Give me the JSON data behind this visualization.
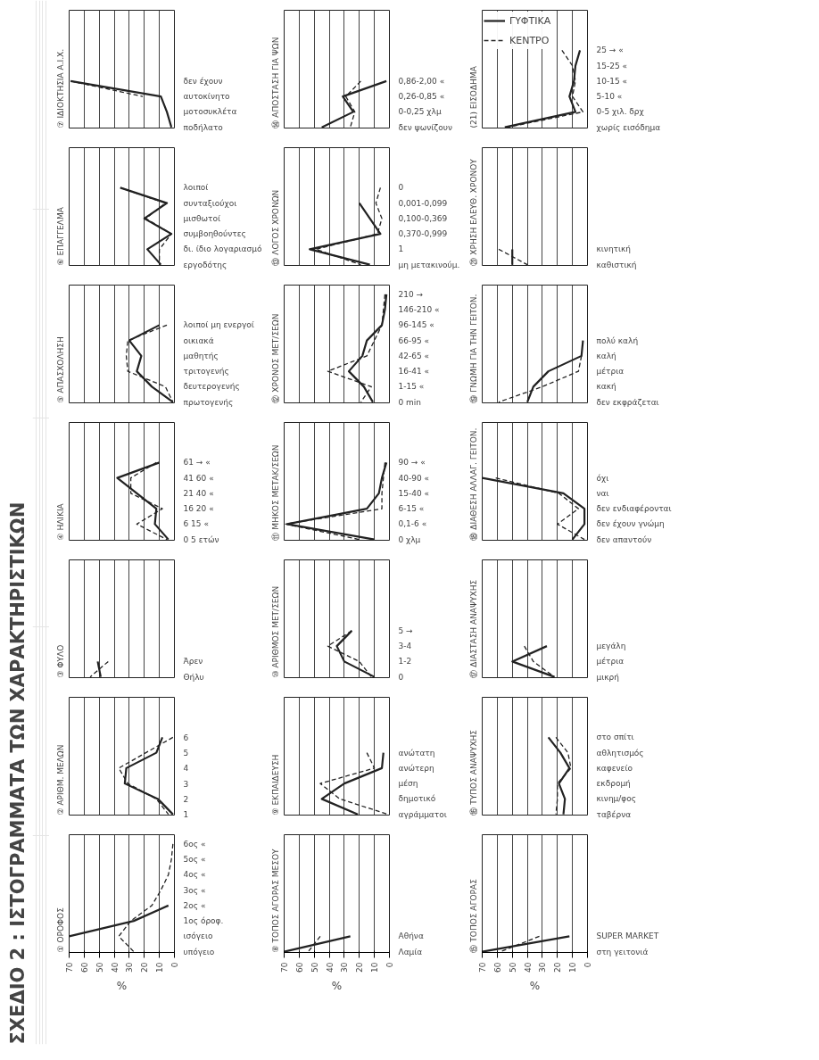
{
  "chart_data": [
    {
      "type": "other",
      "title": "ΣΧΕΔΙΟ 2 : ΙΣΤΟΓΡΑΜΜΑΤΑ ΤΩΝ ΧΑΡΑΚΤΗΡΙΣΤΙΚΩΝ"
    },
    {
      "type": "line",
      "orientation": "horizontal",
      "title": "① ΟΡΟΦΟΣ",
      "xlabel": "%",
      "xlim": [
        70,
        0
      ],
      "xticks": [
        0,
        10,
        20,
        30,
        40,
        50,
        60,
        70
      ],
      "grid": "x",
      "categories": [
        "6ος «",
        "5ος «",
        "4ος «",
        "3ος «",
        "2ος «",
        "1ος όροφ.",
        "ισόγειο",
        "υπόγειο"
      ],
      "series": [
        {
          "color": "#222222",
          "line_style": "solid",
          "values": [
            null,
            null,
            null,
            null,
            4,
            27,
            70,
            null
          ]
        },
        {
          "color": "#222222",
          "line_style": "dashed",
          "values": [
            1,
            2,
            4,
            9,
            15,
            29,
            37,
            27
          ]
        }
      ]
    },
    {
      "type": "line",
      "orientation": "horizontal",
      "title": "② ΑΡΙΘΜ. ΜΕΛΩΝ",
      "tick_labels": "y",
      "xlim": [
        70,
        0
      ],
      "xticks": [
        0,
        10,
        20,
        30,
        40,
        50,
        60,
        70
      ],
      "grid": "x",
      "categories": [
        "6",
        "5",
        "4",
        "3",
        "2",
        "1"
      ],
      "series": [
        {
          "color": "#222222",
          "line_style": "solid",
          "values": [
            8,
            12,
            32,
            33,
            11,
            1
          ]
        },
        {
          "color": "#222222",
          "line_style": "dashed",
          "values": [
            1,
            19,
            37,
            31,
            12,
            4
          ]
        }
      ]
    },
    {
      "type": "line",
      "orientation": "horizontal",
      "title": "③ ΦΥΛΟ",
      "tick_labels": "y",
      "xlim": [
        70,
        0
      ],
      "xticks": [
        0,
        10,
        20,
        30,
        40,
        50,
        60,
        70
      ],
      "grid": "x",
      "categories": [
        "Άρεν",
        "Θήλυ"
      ],
      "series": [
        {
          "color": "#222222",
          "line_style": "solid",
          "values": [
            51,
            49
          ]
        },
        {
          "color": "#222222",
          "line_style": "dashed",
          "values": [
            44,
            56
          ]
        }
      ]
    },
    {
      "type": "line",
      "orientation": "horizontal",
      "title": "④ ΗΛΙΚΙΑ",
      "tick_labels": "y",
      "xlim": [
        70,
        0
      ],
      "xticks": [
        0,
        10,
        20,
        30,
        40,
        50,
        60,
        70
      ],
      "grid": "x",
      "categories": [
        "61 → «",
        "41 60 «",
        "21 40 «",
        "16 20 «",
        "6 15 «",
        "0 5 ετών"
      ],
      "series": [
        {
          "color": "#222222",
          "line_style": "solid",
          "values": [
            10,
            38,
            25,
            12,
            13,
            4
          ]
        },
        {
          "color": "#222222",
          "line_style": "dashed",
          "values": [
            12,
            29,
            29,
            8,
            25,
            5
          ]
        }
      ]
    },
    {
      "type": "line",
      "orientation": "horizontal",
      "title": "⑤ ΑΠΑΣΧΟΛΗΣΗ",
      "tick_labels": "y",
      "xlim": [
        70,
        0
      ],
      "xticks": [
        0,
        10,
        20,
        30,
        40,
        50,
        60,
        70
      ],
      "grid": "x",
      "categories": [
        "λοιποί μη ενεργοί",
        "οικιακά",
        "μαθητής",
        "τριτογενής",
        "δευτερογενής",
        "πρωτογενής"
      ],
      "series": [
        {
          "color": "#222222",
          "line_style": "solid",
          "values": [
            10,
            30,
            22,
            25,
            15,
            1
          ]
        },
        {
          "color": "#222222",
          "line_style": "dashed",
          "values": [
            5,
            31,
            32,
            31,
            6,
            1
          ]
        }
      ]
    },
    {
      "type": "line",
      "orientation": "horizontal",
      "title": "⑥ ΕΠΑΓΓΕΛΜΑ",
      "tick_labels": "y",
      "xlim": [
        70,
        0
      ],
      "xticks": [
        0,
        10,
        20,
        30,
        40,
        50,
        60,
        70
      ],
      "grid": "x",
      "categories": [
        "λοιποί",
        "συνταξιούχοι",
        "μισθωτοί",
        "συμβοηθούντες",
        "δι. ίδιο λογαριασμό",
        "εργοδότης"
      ],
      "series": [
        {
          "color": "#222222",
          "line_style": "solid",
          "values": [
            36,
            5,
            20,
            2,
            18,
            9
          ]
        },
        {
          "color": "#222222",
          "line_style": "dashed",
          "values": [
            36,
            6,
            19,
            2,
            10,
            10
          ]
        }
      ]
    },
    {
      "type": "line",
      "orientation": "horizontal",
      "title": "⑦ ΙΔΙΟΚΤΗΣΙΑ Α.Ι.Χ.",
      "tick_labels": "y",
      "xlim": [
        70,
        0
      ],
      "xticks": [
        0,
        10,
        20,
        30,
        40,
        50,
        60,
        70
      ],
      "grid": "x",
      "categories": [
        "δεν έχουν",
        "αυτοκίνητο",
        "μοτοσυκλέτα",
        "ποδήλατο"
      ],
      "series": [
        {
          "color": "#222222",
          "line_style": "solid",
          "values": [
            69,
            9,
            5,
            2
          ]
        },
        {
          "color": "#222222",
          "line_style": "dashed",
          "values": [
            69,
            21,
            null,
            null
          ]
        }
      ]
    },
    {
      "type": "line",
      "orientation": "horizontal",
      "title": "⑧ ΤΟΠΟΣ ΑΓΟΡΑΣ ΜΕΣΟΥ",
      "xlabel": "%",
      "xlim": [
        70,
        0
      ],
      "xticks": [
        0,
        10,
        20,
        30,
        40,
        50,
        60,
        70
      ],
      "grid": "x",
      "categories": [
        "Αθήνα",
        "Λαμία"
      ],
      "series": [
        {
          "color": "#222222",
          "line_style": "solid",
          "values": [
            26,
            70
          ]
        },
        {
          "color": "#222222",
          "line_style": "dashed",
          "values": [
            46,
            54
          ]
        }
      ]
    },
    {
      "type": "line",
      "orientation": "horizontal",
      "title": "⑨ ΕΚΠΑΙΔΕΥΣΗ",
      "tick_labels": "y",
      "xlim": [
        70,
        0
      ],
      "xticks": [
        0,
        10,
        20,
        30,
        40,
        50,
        60,
        70
      ],
      "grid": "x",
      "categories": [
        "ανώτατη",
        "ανώτερη",
        "μέση",
        "δημοτικό",
        "αγράμματοι"
      ],
      "series": [
        {
          "color": "#222222",
          "line_style": "solid",
          "values": [
            4,
            5,
            30,
            45,
            21
          ]
        },
        {
          "color": "#222222",
          "line_style": "dashed",
          "values": [
            15,
            10,
            46,
            33,
            1
          ]
        }
      ]
    },
    {
      "type": "line",
      "orientation": "horizontal",
      "title": "⑩ ΑΡΙΘΜΟΣ ΜΕΤ/ΣΕΩΝ",
      "tick_labels": "y",
      "xlim": [
        70,
        0
      ],
      "xticks": [
        0,
        10,
        20,
        30,
        40,
        50,
        60,
        70
      ],
      "grid": "x",
      "categories": [
        "5 →",
        "3-4",
        "1-2",
        "0"
      ],
      "series": [
        {
          "color": "#222222",
          "line_style": "solid",
          "values": [
            25,
            35,
            30,
            10
          ]
        },
        {
          "color": "#222222",
          "line_style": "dashed",
          "values": [
            25,
            41,
            20,
            12
          ]
        }
      ]
    },
    {
      "type": "line",
      "orientation": "horizontal",
      "title": "⑪ ΜΗΚΟΣ ΜΕΤΑΚ/ΣΕΩΝ",
      "tick_labels": "y",
      "xlim": [
        70,
        0
      ],
      "xticks": [
        0,
        10,
        20,
        30,
        40,
        50,
        60,
        70
      ],
      "grid": "x",
      "categories": [
        "90 → «",
        "40-90 «",
        "15-40 «",
        "6-15 «",
        "0,1-6 «",
        "0 χλμ"
      ],
      "series": [
        {
          "color": "#222222",
          "line_style": "solid",
          "values": [
            2,
            5,
            7,
            15,
            68,
            10
          ]
        },
        {
          "color": "#222222",
          "line_style": "dashed",
          "values": [
            3,
            4,
            5,
            5,
            69,
            20
          ]
        }
      ]
    },
    {
      "type": "line",
      "orientation": "horizontal",
      "title": "⑫ ΧΡΟΝΟΣ ΜΕΤ/ΣΕΩΝ",
      "tick_labels": "y",
      "xlim": [
        70,
        0
      ],
      "xticks": [
        0,
        10,
        20,
        30,
        40,
        50,
        60,
        70
      ],
      "grid": "x",
      "categories": [
        "210 →",
        "146-210 «",
        "96-145 «",
        "66-95 «",
        "42-65 «",
        "16-41 «",
        "1-15 «",
        "0 min"
      ],
      "series": [
        {
          "color": "#222222",
          "line_style": "solid",
          "values": [
            2,
            3,
            5,
            15,
            18,
            27,
            17,
            11
          ]
        },
        {
          "color": "#222222",
          "line_style": "dashed",
          "values": [
            3,
            4,
            5,
            10,
            15,
            41,
            12,
            19
          ]
        }
      ]
    },
    {
      "type": "line",
      "orientation": "horizontal",
      "title": "⑬ ΛΟΓΟΣ ΧΡΟΝΩΝ",
      "tick_labels": "y",
      "xlim": [
        70,
        0
      ],
      "xticks": [
        0,
        10,
        20,
        30,
        40,
        50,
        60,
        70
      ],
      "grid": "x",
      "categories": [
        "0",
        "0,001-0,099",
        "0,100-0,369",
        "0,370-0,999",
        "1",
        "μη μετακινούμ."
      ],
      "series": [
        {
          "color": "#222222",
          "line_style": "solid",
          "values": [
            null,
            20,
            13,
            6,
            53,
            13
          ]
        },
        {
          "color": "#222222",
          "line_style": "dashed",
          "values": [
            6,
            9,
            5,
            8,
            49,
            19
          ]
        }
      ]
    },
    {
      "type": "line",
      "orientation": "horizontal",
      "title": "⑭ ΑΠΟΣΤΑΣΗ ΓΙΑ ΨΩΝ",
      "tick_labels": "y",
      "xlim": [
        70,
        0
      ],
      "xticks": [
        0,
        10,
        20,
        30,
        40,
        50,
        60,
        70
      ],
      "grid": "x",
      "categories": [
        "0,86-2,00 «",
        "0,26-0,85 «",
        "0-0,25 χλμ",
        "δεν ψωνίζουν"
      ],
      "series": [
        {
          "color": "#222222",
          "line_style": "solid",
          "values": [
            2,
            31,
            24,
            45
          ]
        },
        {
          "color": "#222222",
          "line_style": "dashed",
          "values": [
            19,
            29,
            23,
            26
          ]
        }
      ]
    },
    {
      "type": "line",
      "orientation": "horizontal",
      "title": "⑮ ΤΟΠΟΣ ΑΓΟΡΑΣ",
      "xlabel": "%",
      "xlim": [
        70,
        0
      ],
      "xticks": [
        0,
        10,
        20,
        30,
        40,
        50,
        60,
        70
      ],
      "grid": "x",
      "categories": [
        "SUPER MARKET",
        "στη γειτονιά"
      ],
      "series": [
        {
          "color": "#222222",
          "line_style": "solid",
          "values": [
            12,
            70
          ]
        },
        {
          "color": "#222222",
          "line_style": "dashed",
          "values": [
            32,
            58
          ]
        }
      ]
    },
    {
      "type": "line",
      "orientation": "horizontal",
      "title": "⑯ ΤΥΠΟΣ ΑΝΑΨΥΧΗΣ",
      "tick_labels": "y",
      "xlim": [
        70,
        0
      ],
      "xticks": [
        0,
        10,
        20,
        30,
        40,
        50,
        60,
        70
      ],
      "grid": "x",
      "categories": [
        "στο σπίτι",
        "αθλητισμός",
        "καφενείο",
        "εκδρομή",
        "κινημ/φος",
        "ταβέρνα"
      ],
      "series": [
        {
          "color": "#222222",
          "line_style": "solid",
          "values": [
            26,
            18,
            12,
            19,
            15,
            16
          ]
        },
        {
          "color": "#222222",
          "line_style": "dashed",
          "values": [
            21,
            13,
            11,
            20,
            20,
            21
          ]
        }
      ]
    },
    {
      "type": "line",
      "orientation": "horizontal",
      "title": "⑰ ΔΙΑΣΤΑΣΗ ΑΝΑΨΥΧΗΣ",
      "tick_labels": "y",
      "xlim": [
        70,
        0
      ],
      "xticks": [
        0,
        10,
        20,
        30,
        40,
        50,
        60,
        70
      ],
      "grid": "x",
      "categories": [
        "μεγάλη",
        "μέτρια",
        "μικρή"
      ],
      "series": [
        {
          "color": "#222222",
          "line_style": "solid",
          "values": [
            27,
            50,
            22
          ]
        },
        {
          "color": "#222222",
          "line_style": "dashed",
          "values": [
            42,
            36,
            22
          ]
        }
      ]
    },
    {
      "type": "line",
      "orientation": "horizontal",
      "title": "⑱ ΔΙΑΘΕΣΗ ΑΛΛΑΓ. ΓΕΙΤΟΝ.",
      "tick_labels": "y",
      "xlim": [
        70,
        0
      ],
      "xticks": [
        0,
        10,
        20,
        30,
        40,
        50,
        60,
        70
      ],
      "grid": "x",
      "categories": [
        "όχι",
        "ναι",
        "δεν ενδιαφέρονται",
        "δεν έχουν γνώμη",
        "δεν απαντούν"
      ],
      "series": [
        {
          "color": "#222222",
          "line_style": "solid",
          "values": [
            70,
            16,
            2,
            2,
            10
          ]
        },
        {
          "color": "#222222",
          "line_style": "dashed",
          "values": [
            61,
            19,
            6,
            20,
            2
          ]
        }
      ]
    },
    {
      "type": "line",
      "orientation": "horizontal",
      "title": "⑲ ΓΝΩΜΗ ΓΙΑ ΤΗΝ ΓΕΙΤΟΝ.",
      "tick_labels": "y",
      "xlim": [
        70,
        0
      ],
      "xticks": [
        0,
        10,
        20,
        30,
        40,
        50,
        60,
        70
      ],
      "grid": "x",
      "categories": [
        "πολύ καλή",
        "καλή",
        "μέτρια",
        "κακή",
        "δεν εκφράζεται"
      ],
      "series": [
        {
          "color": "#222222",
          "line_style": "solid",
          "values": [
            3,
            4,
            26,
            36,
            40
          ]
        },
        {
          "color": "#222222",
          "line_style": "dashed",
          "values": [
            null,
            4,
            6,
            30,
            59
          ]
        }
      ]
    },
    {
      "type": "line",
      "orientation": "horizontal",
      "title": "⑳ ΧΡΗΣΗ ΕΛΕΥΘ. ΧΡΟΝΟΥ",
      "tick_labels": "y",
      "xlim": [
        70,
        0
      ],
      "xticks": [
        0,
        10,
        20,
        30,
        40,
        50,
        60,
        70
      ],
      "grid": "x",
      "categories": [
        "κινητική",
        "καθιστική"
      ],
      "series": [
        {
          "color": "#222222",
          "line_style": "solid",
          "values": [
            50,
            50
          ]
        },
        {
          "color": "#222222",
          "line_style": "dashed",
          "values": [
            59,
            40
          ]
        }
      ]
    },
    {
      "type": "line",
      "orientation": "horizontal",
      "title": "(21) ΕΙΣΟΔΗΜΑ",
      "tick_labels": "y",
      "legend": "top left",
      "xlim": [
        70,
        0
      ],
      "xticks": [
        0,
        10,
        20,
        30,
        40,
        50,
        60,
        70
      ],
      "grid": "x",
      "categories": [
        "25 → «",
        "15-25 «",
        "10-15 «",
        "5-10 «",
        "0-5 χιλ. δρχ",
        "χωρίς εισόδημα"
      ],
      "series": [
        {
          "name": "ΓΥΦΤΙΚΑ",
          "color": "#222222",
          "line_style": "solid",
          "values": [
            5,
            8,
            9,
            12,
            8,
            55
          ]
        },
        {
          "name": "ΚΕΝΤΡΟ",
          "color": "#222222",
          "line_style": "dashed",
          "values": [
            17,
            10,
            8,
            10,
            3,
            53
          ]
        }
      ]
    }
  ]
}
